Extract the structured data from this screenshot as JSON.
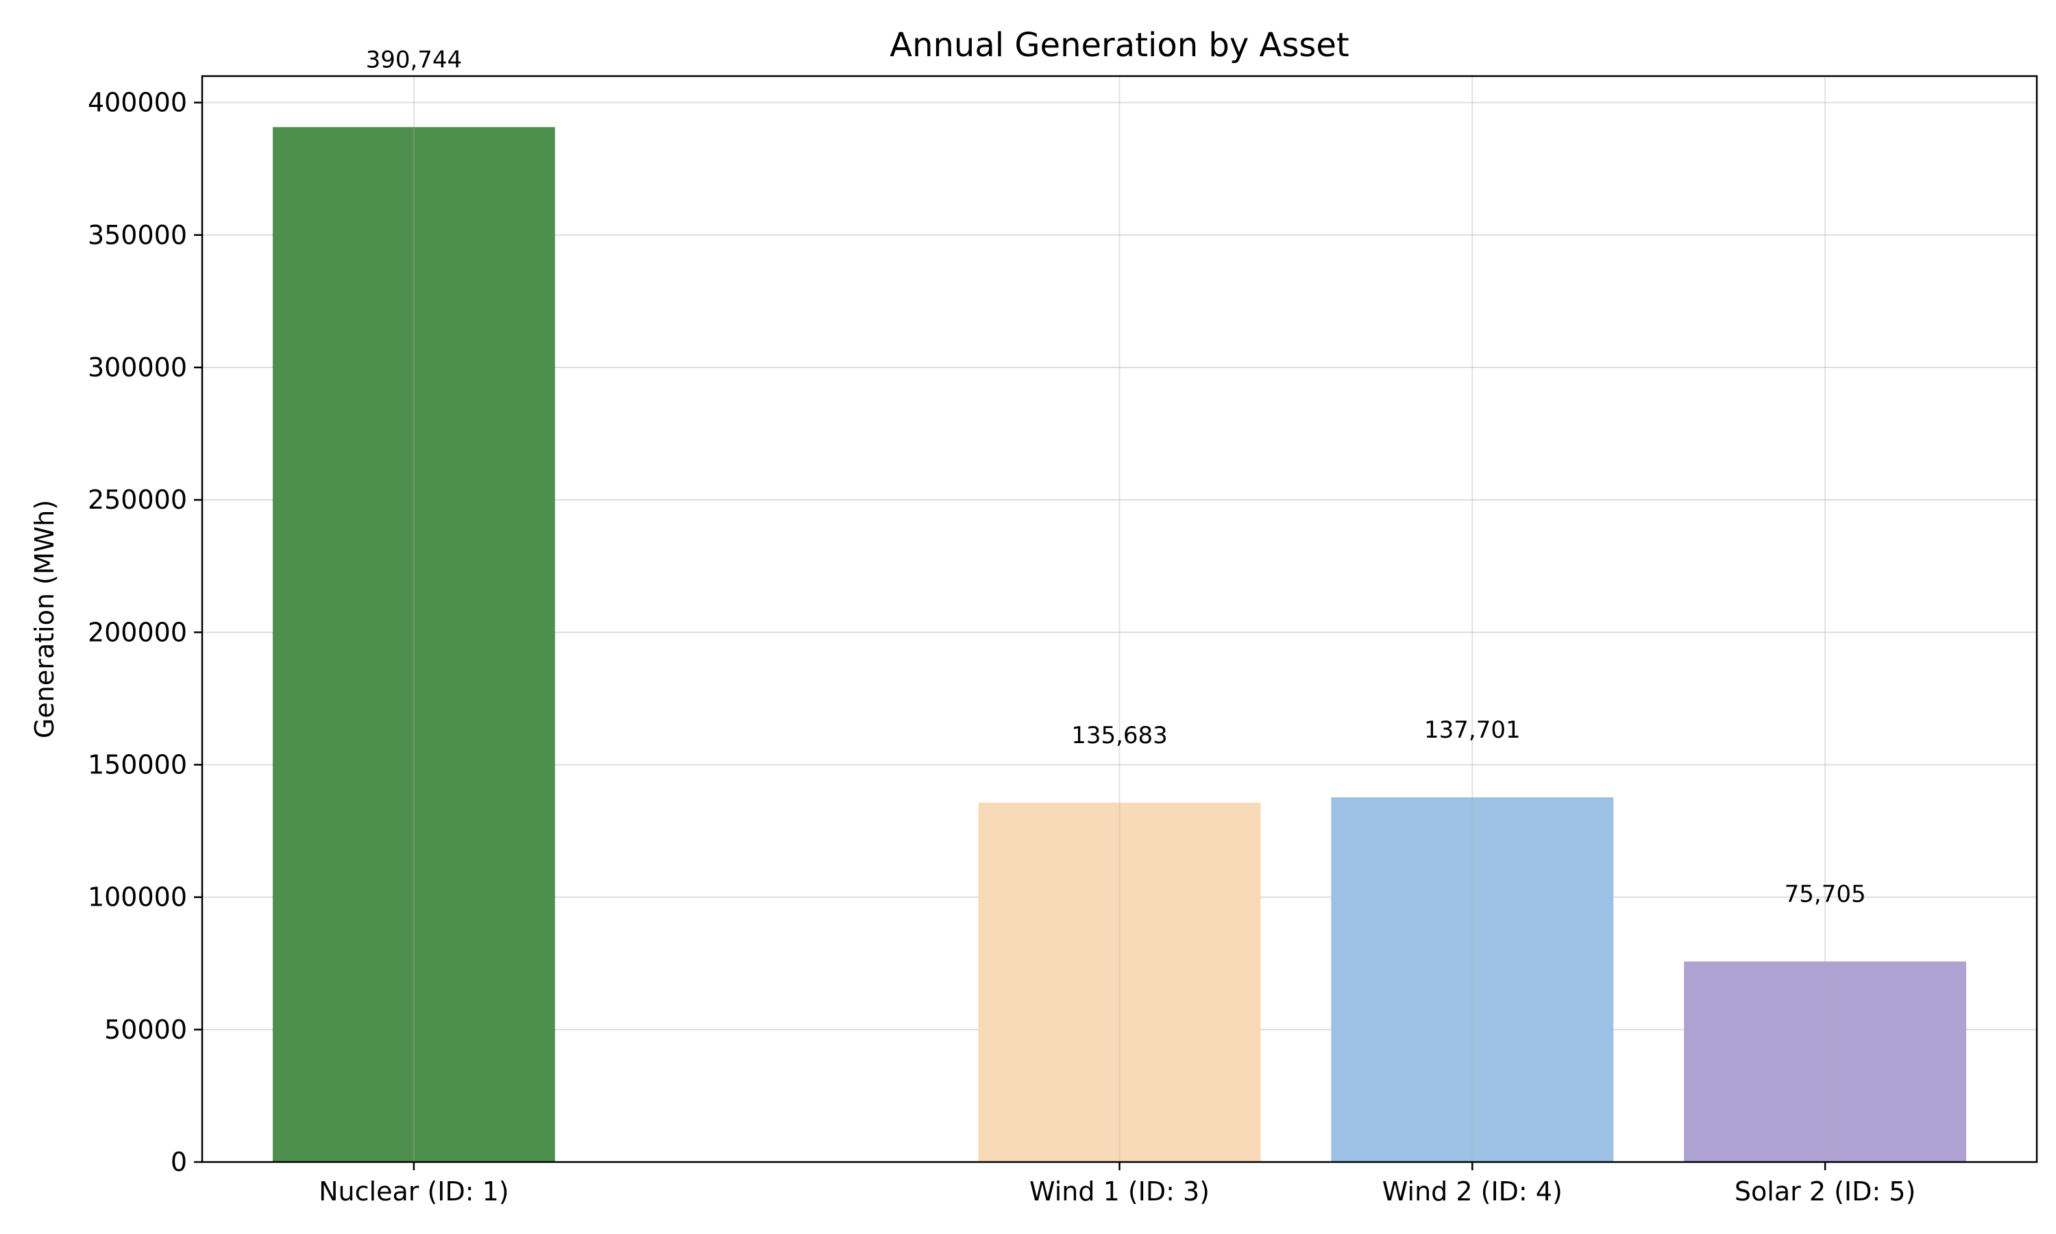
{
  "chart_data": {
    "type": "bar",
    "title": "Annual Generation by Asset",
    "xlabel": "",
    "ylabel": "Generation (MWh)",
    "categories": [
      "Nuclear (ID: 1)",
      "",
      "Wind 1 (ID: 3)",
      "Wind 2 (ID: 4)",
      "Solar 2 (ID: 5)"
    ],
    "values": [
      390744,
      0,
      135683,
      137701,
      75705
    ],
    "data_labels": [
      "390,744",
      "",
      "135,683",
      "137,701",
      "75,705"
    ],
    "colors": [
      "#4e8f4d",
      "#ffffff",
      "#f9dab8",
      "#9cc1e4",
      "#aea2d3"
    ],
    "ylim": [
      0,
      410000
    ],
    "yticks": [
      0,
      50000,
      100000,
      150000,
      200000,
      250000,
      300000,
      350000,
      400000
    ],
    "ytick_labels": [
      "0",
      "50000",
      "100000",
      "150000",
      "200000",
      "250000",
      "300000",
      "350000",
      "400000"
    ],
    "grid": true,
    "legend": "none"
  }
}
